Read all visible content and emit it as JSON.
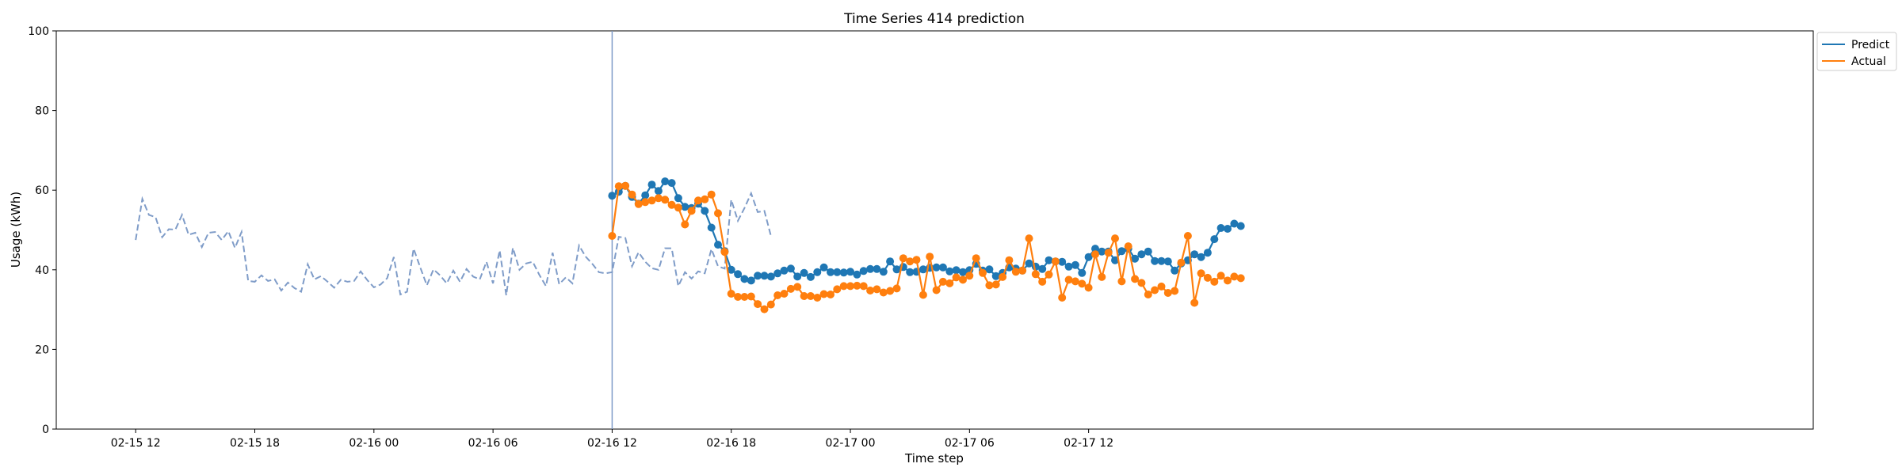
{
  "chart_data": {
    "type": "line",
    "title": "Time Series 414 prediction",
    "xlabel": "Time step",
    "ylabel": "Usage (kWh)",
    "ylim": [
      0,
      100
    ],
    "yticks": [
      0,
      20,
      40,
      60,
      80,
      100
    ],
    "xlim_hours": [
      -4.0,
      84.5
    ],
    "x_start": "2024-02-15 10:00",
    "xticks": [
      {
        "label": "02-15 12",
        "hour": 0
      },
      {
        "label": "02-15 18",
        "hour": 6
      },
      {
        "label": "02-16 00",
        "hour": 12
      },
      {
        "label": "02-16 06",
        "hour": 18
      },
      {
        "label": "02-16 12",
        "hour": 24
      },
      {
        "label": "02-16 18",
        "hour": 30
      },
      {
        "label": "02-17 00",
        "hour": 36
      },
      {
        "label": "02-17 06",
        "hour": 42
      },
      {
        "label": "02-17 12",
        "hour": 48
      }
    ],
    "step_minutes": 20,
    "forecast_start": "2024-02-16 10:00",
    "history": {
      "name": "",
      "start": "2024-02-15 10:00",
      "color": "#7f9cc8",
      "values": [
        47.5,
        57.8,
        53.8,
        53.2,
        48.2,
        50.2,
        50.1,
        53.8,
        48.8,
        49.3,
        45.7,
        49.3,
        49.5,
        47.5,
        49.7,
        45.5,
        49.5,
        37.2,
        37.0,
        38.6,
        37.2,
        37.6,
        34.8,
        36.8,
        35.4,
        34.5,
        41.4,
        37.6,
        38.4,
        37.0,
        35.5,
        37.5,
        37.0,
        37.2,
        39.6,
        37.4,
        35.6,
        36.3,
        37.9,
        43.2,
        33.8,
        34.5,
        45.3,
        40.6,
        36.1,
        40.1,
        38.6,
        36.6,
        39.8,
        37.0,
        40.2,
        38.3,
        37.6,
        42.0,
        36.6,
        44.9,
        33.6,
        45.5,
        40.0,
        41.6,
        42.0,
        38.7,
        35.9,
        44.3,
        36.4,
        38.1,
        36.6,
        46.1,
        43.3,
        41.5,
        39.4,
        39.1,
        39.4,
        48.3,
        48.0,
        40.9,
        44.4,
        42.0,
        40.4,
        40.0,
        45.4,
        45.4,
        35.9,
        39.4,
        37.8,
        39.6,
        39.1,
        45.2,
        40.9,
        40.3,
        57.6,
        52.3,
        55.5,
        59.2,
        54.5,
        54.8,
        48.5
      ]
    },
    "series": [
      {
        "name": "Predict",
        "start": "2024-02-16 10:00",
        "color": "#1f77b4",
        "values": [
          58.6,
          59.6,
          61.1,
          58.3,
          56.6,
          58.7,
          61.4,
          59.8,
          62.2,
          61.8,
          58.0,
          55.8,
          55.5,
          56.6,
          54.8,
          50.6,
          46.3,
          44.7,
          40.0,
          38.9,
          37.7,
          37.3,
          38.5,
          38.5,
          38.3,
          39.1,
          39.8,
          40.3,
          38.3,
          39.2,
          38.2,
          39.4,
          40.6,
          39.4,
          39.4,
          39.3,
          39.5,
          38.8,
          39.7,
          40.2,
          40.2,
          39.5,
          42.1,
          40.1,
          40.7,
          39.4,
          39.5,
          40.1,
          40.5,
          40.6,
          40.6,
          39.6,
          39.9,
          39.4,
          39.9,
          41.5,
          39.8,
          40.1,
          38.4,
          39.2,
          40.6,
          40.3,
          39.8,
          41.6,
          40.8,
          40.2,
          42.4,
          42.1,
          42.0,
          40.8,
          41.2,
          39.2,
          43.2,
          45.3,
          44.6,
          44.6,
          42.4,
          44.7,
          45.3,
          42.8,
          43.9,
          44.6,
          42.2,
          42.2,
          42.1,
          39.8,
          41.6,
          42.4,
          43.9,
          43.2,
          44.3,
          47.7,
          50.5,
          50.3,
          51.6,
          51.0
        ]
      },
      {
        "name": "Actual",
        "start": "2024-02-16 10:00",
        "color": "#ff7f0e",
        "values": [
          48.5,
          61.0,
          61.1,
          58.9,
          56.5,
          57.0,
          57.4,
          58.0,
          57.6,
          56.3,
          55.6,
          51.4,
          54.8,
          57.4,
          57.7,
          58.9,
          54.2,
          44.5,
          34.0,
          33.2,
          33.2,
          33.3,
          31.4,
          30.1,
          31.3,
          33.6,
          34.0,
          35.2,
          35.7,
          33.4,
          33.4,
          33.0,
          33.9,
          33.8,
          35.1,
          35.9,
          35.9,
          36.0,
          35.9,
          34.8,
          35.1,
          34.3,
          34.7,
          35.3,
          42.9,
          42.1,
          42.5,
          33.7,
          43.3,
          34.9,
          37.0,
          36.6,
          38.1,
          37.5,
          38.5,
          42.9,
          39.2,
          36.1,
          36.3,
          38.2,
          42.4,
          39.5,
          39.8,
          47.9,
          38.9,
          37.0,
          38.8,
          42.1,
          33.0,
          37.5,
          37.1,
          36.5,
          35.5,
          43.9,
          38.2,
          44.3,
          47.9,
          37.1,
          45.9,
          37.7,
          36.7,
          33.8,
          34.9,
          35.8,
          34.2,
          34.7,
          41.8,
          48.5,
          31.7,
          39.1,
          38.0,
          37.0,
          38.5,
          37.3,
          38.3,
          37.9
        ]
      }
    ],
    "legend": {
      "placement": "upper-right-outside",
      "entries": [
        "Predict",
        "Actual"
      ]
    },
    "grid": false
  }
}
